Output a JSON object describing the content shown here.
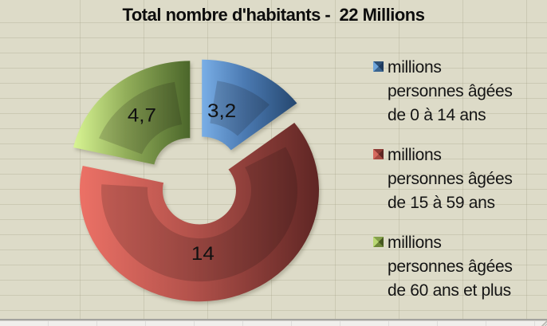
{
  "title": "Total nombre d'habitants -  22 Millions",
  "chart_data": {
    "type": "pie",
    "subtype": "exploded-3d-donut",
    "title": "Total nombre d'habitants -  22 Millions",
    "total_millions": 22,
    "unit": "millions",
    "legend_position": "right",
    "start_angle_deg": 0,
    "direction": "clockwise",
    "slices": [
      {
        "name": "millions personnes âgées de 0 à 14 ans",
        "value": 3.2,
        "data_label": "3,2",
        "color_light": "#79aee6",
        "color_mid": "#4b7ab2",
        "color_dark": "#25476f"
      },
      {
        "name": "millions personnes âgées de 15 à 59 ans",
        "value": 14,
        "data_label": "14",
        "color_light": "#ec7166",
        "color_mid": "#b5534c",
        "color_dark": "#5f2624"
      },
      {
        "name": "millions personnes âgées de 60 ans et plus",
        "value": 4.7,
        "data_label": "4,7",
        "color_light": "#d8f593",
        "color_mid": "#92ae5a",
        "color_dark": "#4b662a"
      }
    ]
  },
  "legend": {
    "items": [
      {
        "lines": [
          "millions",
          "personnes âgées",
          "de 0 à 14 ans"
        ],
        "marker_left": "#6fa5da",
        "marker_top": "#2d5076",
        "marker_right": "#1e3a5e",
        "marker_bottom": "#3a648f"
      },
      {
        "lines": [
          "millions",
          "personnes âgées",
          "de 15 à 59 ans"
        ],
        "marker_left": "#d5695e",
        "marker_top": "#8c3a34",
        "marker_right": "#5f2724",
        "marker_bottom": "#a74a42"
      },
      {
        "lines": [
          "millions",
          "personnes âgées",
          "de 60 ans et plus"
        ],
        "marker_left": "#b9d873",
        "marker_top": "#84a04b",
        "marker_right": "#46581f",
        "marker_bottom": "#6e8838"
      }
    ]
  }
}
